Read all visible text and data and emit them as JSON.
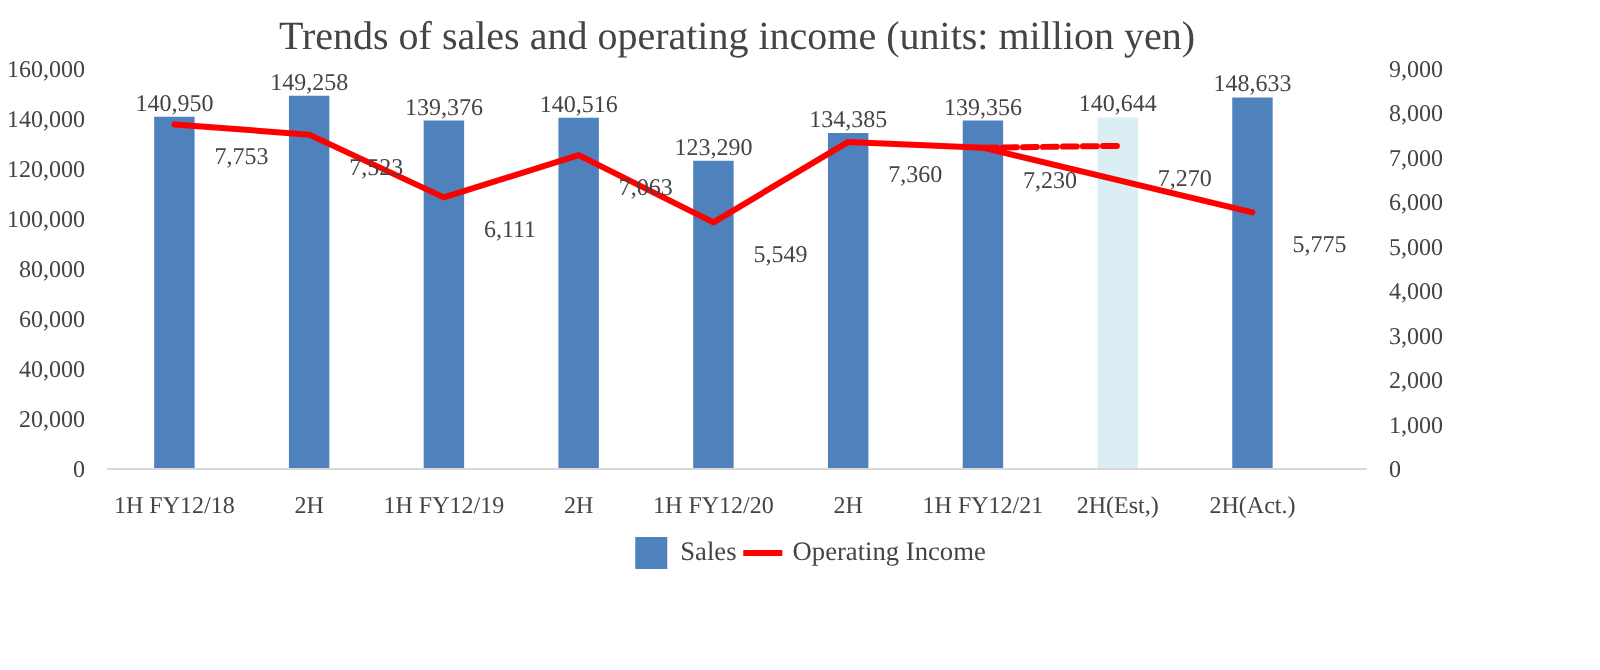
{
  "chart_data": {
    "type": "bar",
    "title": "Trends of sales and operating income (units: million yen)",
    "categories": [
      "1H FY12/18",
      "2H",
      "1H FY12/19",
      "2H",
      "1H FY12/20",
      "2H",
      "1H FY12/21",
      "2H(Est,)",
      "2H(Act.)"
    ],
    "series": [
      {
        "name": "Sales",
        "color": "#4f81bd",
        "colors": [
          null,
          null,
          null,
          null,
          null,
          null,
          null,
          "#dbeef4",
          null
        ],
        "values": [
          140950,
          149258,
          139376,
          140516,
          123290,
          134385,
          139356,
          140644,
          148633
        ],
        "value_labels": [
          "140,950",
          "149,258",
          "139,376",
          "140,516",
          "123,290",
          "134,385",
          "139,356",
          "140,644",
          "148,633"
        ]
      },
      {
        "name": "Operating Income",
        "type": "line",
        "axis": "y2",
        "color": "#ff0000",
        "line_style": "solid",
        "values": [
          7753,
          7523,
          6111,
          7063,
          5549,
          7360,
          7230,
          null,
          5775
        ],
        "value_labels": [
          "7,753",
          "7,523",
          "6,111",
          "7,063",
          "5,549",
          "7,360",
          "7,230",
          null,
          "5,775"
        ]
      },
      {
        "type": "line",
        "axis": "y2",
        "color": "#ff0000",
        "line_style": "dashed",
        "values": [
          null,
          null,
          null,
          null,
          null,
          null,
          7230,
          7270,
          null
        ],
        "value_labels": [
          null,
          null,
          null,
          null,
          null,
          null,
          null,
          "7,270",
          null
        ]
      }
    ],
    "ylim": [
      0,
      160000
    ],
    "yticks": [
      {
        "value": 0,
        "label": "0"
      },
      {
        "value": 20000,
        "label": "20,000"
      },
      {
        "value": 40000,
        "label": "40,000"
      },
      {
        "value": 60000,
        "label": "60,000"
      },
      {
        "value": 80000,
        "label": "80,000"
      },
      {
        "value": 100000,
        "label": "100,000"
      },
      {
        "value": 120000,
        "label": "120,000"
      },
      {
        "value": 140000,
        "label": "140,000"
      },
      {
        "value": 160000,
        "label": "160,000"
      }
    ],
    "y2lim": [
      0,
      9000
    ],
    "y2ticks": [
      {
        "value": 0,
        "label": "0"
      },
      {
        "value": 1000,
        "label": "1,000"
      },
      {
        "value": 2000,
        "label": "2,000"
      },
      {
        "value": 3000,
        "label": "3,000"
      },
      {
        "value": 4000,
        "label": "4,000"
      },
      {
        "value": 5000,
        "label": "5,000"
      },
      {
        "value": 6000,
        "label": "6,000"
      },
      {
        "value": 7000,
        "label": "7,000"
      },
      {
        "value": 8000,
        "label": "8,000"
      },
      {
        "value": 9000,
        "label": "9,000"
      }
    ],
    "grid": false,
    "legend": "bottom"
  }
}
